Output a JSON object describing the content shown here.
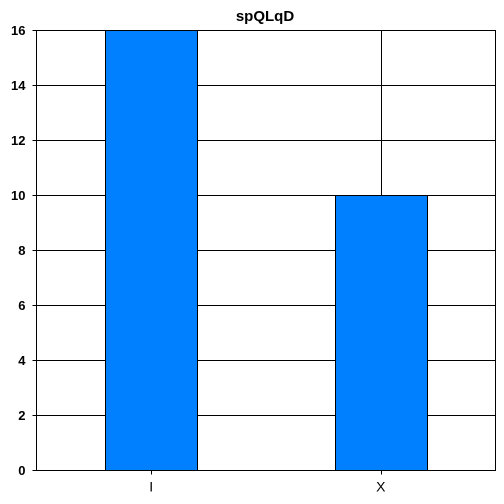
{
  "chart_data": {
    "type": "bar",
    "title": "spQLqD",
    "categories": [
      "I",
      "X"
    ],
    "values": [
      16,
      10
    ],
    "xlabel": "",
    "ylabel": "",
    "ylim": [
      0,
      16
    ],
    "yticks": [
      0,
      2,
      4,
      6,
      8,
      10,
      12,
      14,
      16
    ],
    "grid": true,
    "legend": "none",
    "bar_color": "#0080ff"
  }
}
